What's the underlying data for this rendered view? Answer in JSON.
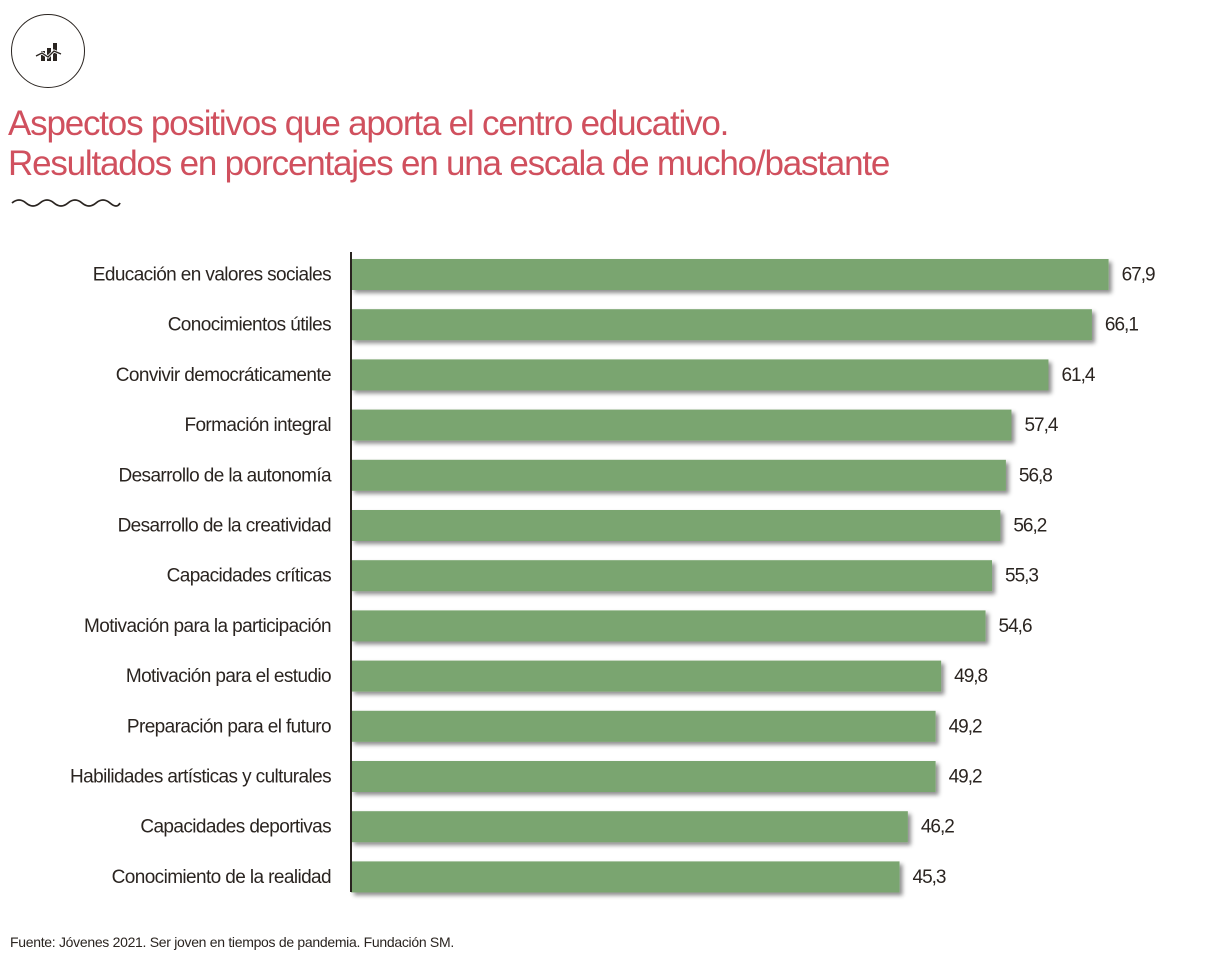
{
  "header": {
    "icon": "chart-icon",
    "title_line1": "Aspectos positivos que aporta el centro educativo.",
    "title_line2": "Resultados en porcentajes en una escala de mucho/bastante",
    "title_color": "#d0505e"
  },
  "chart_data": {
    "type": "bar",
    "orientation": "horizontal",
    "title": "Aspectos positivos que aporta el centro educativo. Resultados en porcentajes en una escala de mucho/bastante",
    "xlabel": "",
    "ylabel": "",
    "bar_color": "#7aa56f",
    "grid": false,
    "categories": [
      "Educación en valores sociales",
      "Conocimientos útiles",
      "Convivir democráticamente",
      "Formación integral",
      "Desarrollo de la autonomía",
      "Desarrollo de la creatividad",
      "Capacidades críticas",
      "Motivación para la participación",
      "Motivación para el estudio",
      "Preparación para el futuro",
      "Habilidades artísticas y culturales",
      "Capacidades deportivas",
      "Conocimiento de la realidad"
    ],
    "values": [
      67.9,
      66.1,
      61.4,
      57.4,
      56.8,
      56.2,
      55.3,
      54.6,
      49.8,
      49.2,
      49.2,
      46.2,
      45.3
    ],
    "value_labels": [
      "67,9",
      "66,1",
      "61,4",
      "57,4",
      "56,8",
      "56,2",
      "55,3",
      "54,6",
      "49,8",
      "49,2",
      "49,2",
      "46,2",
      "45,3"
    ],
    "xlim": [
      -14,
      70
    ]
  },
  "footer": {
    "source": "Fuente:  Jóvenes 2021. Ser joven en tiempos de pandemia. Fundación SM."
  }
}
